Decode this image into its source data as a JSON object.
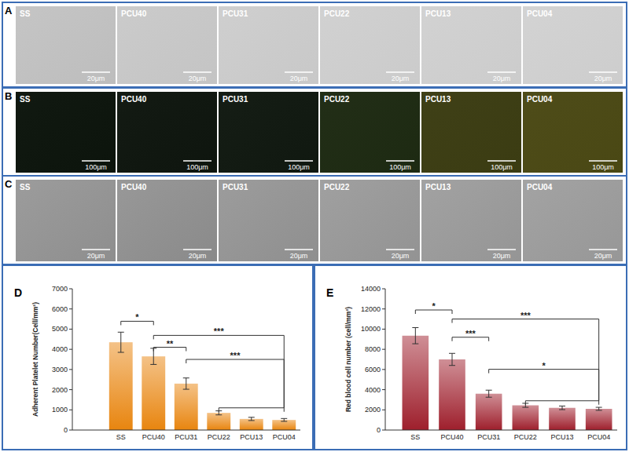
{
  "panels": [
    {
      "label": "A",
      "images": [
        "SS",
        "PCU40",
        "PCU31",
        "PCU22",
        "PCU13",
        "PCU04"
      ],
      "scale_bar": "20μm"
    },
    {
      "label": "B",
      "images": [
        "SS",
        "PCU40",
        "PCU31",
        "PCU22",
        "PCU13",
        "PCU04"
      ],
      "scale_bar": "100μm"
    },
    {
      "label": "C",
      "images": [
        "SS",
        "PCU40",
        "PCU31",
        "PCU22",
        "PCU13",
        "PCU04"
      ],
      "scale_bar": "20μm"
    }
  ],
  "chart_data": [
    {
      "type": "bar",
      "panel_label": "D",
      "categories": [
        "SS",
        "PCU40",
        "PCU31",
        "PCU22",
        "PCU13",
        "PCU04"
      ],
      "values": [
        4350,
        3650,
        2300,
        850,
        550,
        500
      ],
      "errors": [
        500,
        400,
        280,
        100,
        80,
        70
      ],
      "color": "#e8850f",
      "y_label": "Adherent Platelet Number(Cell/mm²)",
      "ylim": [
        0,
        7000
      ],
      "yticks": [
        0,
        1000,
        2000,
        3000,
        4000,
        5000,
        6000,
        7000
      ],
      "grid": false,
      "annotations": [
        {
          "text": "*",
          "from": "SS",
          "to": [
            "PCU40"
          ]
        },
        {
          "text": "***",
          "from": "PCU40",
          "to": [
            "PCU22",
            "PCU13",
            "PCU04"
          ]
        },
        {
          "text": "**",
          "from": "PCU40",
          "to": [
            "PCU31"
          ]
        },
        {
          "text": "***",
          "from": "PCU31",
          "to": [
            "PCU22",
            "PCU13",
            "PCU04"
          ]
        }
      ]
    },
    {
      "type": "bar",
      "panel_label": "E",
      "categories": [
        "SS",
        "PCU40",
        "PCU31",
        "PCU22",
        "PCU13",
        "PCU04"
      ],
      "values": [
        9350,
        7000,
        3600,
        2450,
        2200,
        2100
      ],
      "errors": [
        800,
        600,
        350,
        200,
        180,
        150
      ],
      "color": "#9e1f2c",
      "y_label": "Red blood cell number (cell/mm²)",
      "ylim": [
        0,
        14000
      ],
      "yticks": [
        0,
        2000,
        4000,
        6000,
        8000,
        10000,
        12000,
        14000
      ],
      "grid": false,
      "annotations": [
        {
          "text": "*",
          "from": "SS",
          "to": [
            "PCU40"
          ]
        },
        {
          "text": "***",
          "from": "PCU40",
          "to": [
            "PCU22",
            "PCU13",
            "PCU04"
          ]
        },
        {
          "text": "***",
          "from": "PCU40",
          "to": [
            "PCU31"
          ]
        },
        {
          "text": "*",
          "from": "PCU31",
          "to": [
            "PCU22",
            "PCU13",
            "PCU04"
          ]
        }
      ]
    }
  ]
}
